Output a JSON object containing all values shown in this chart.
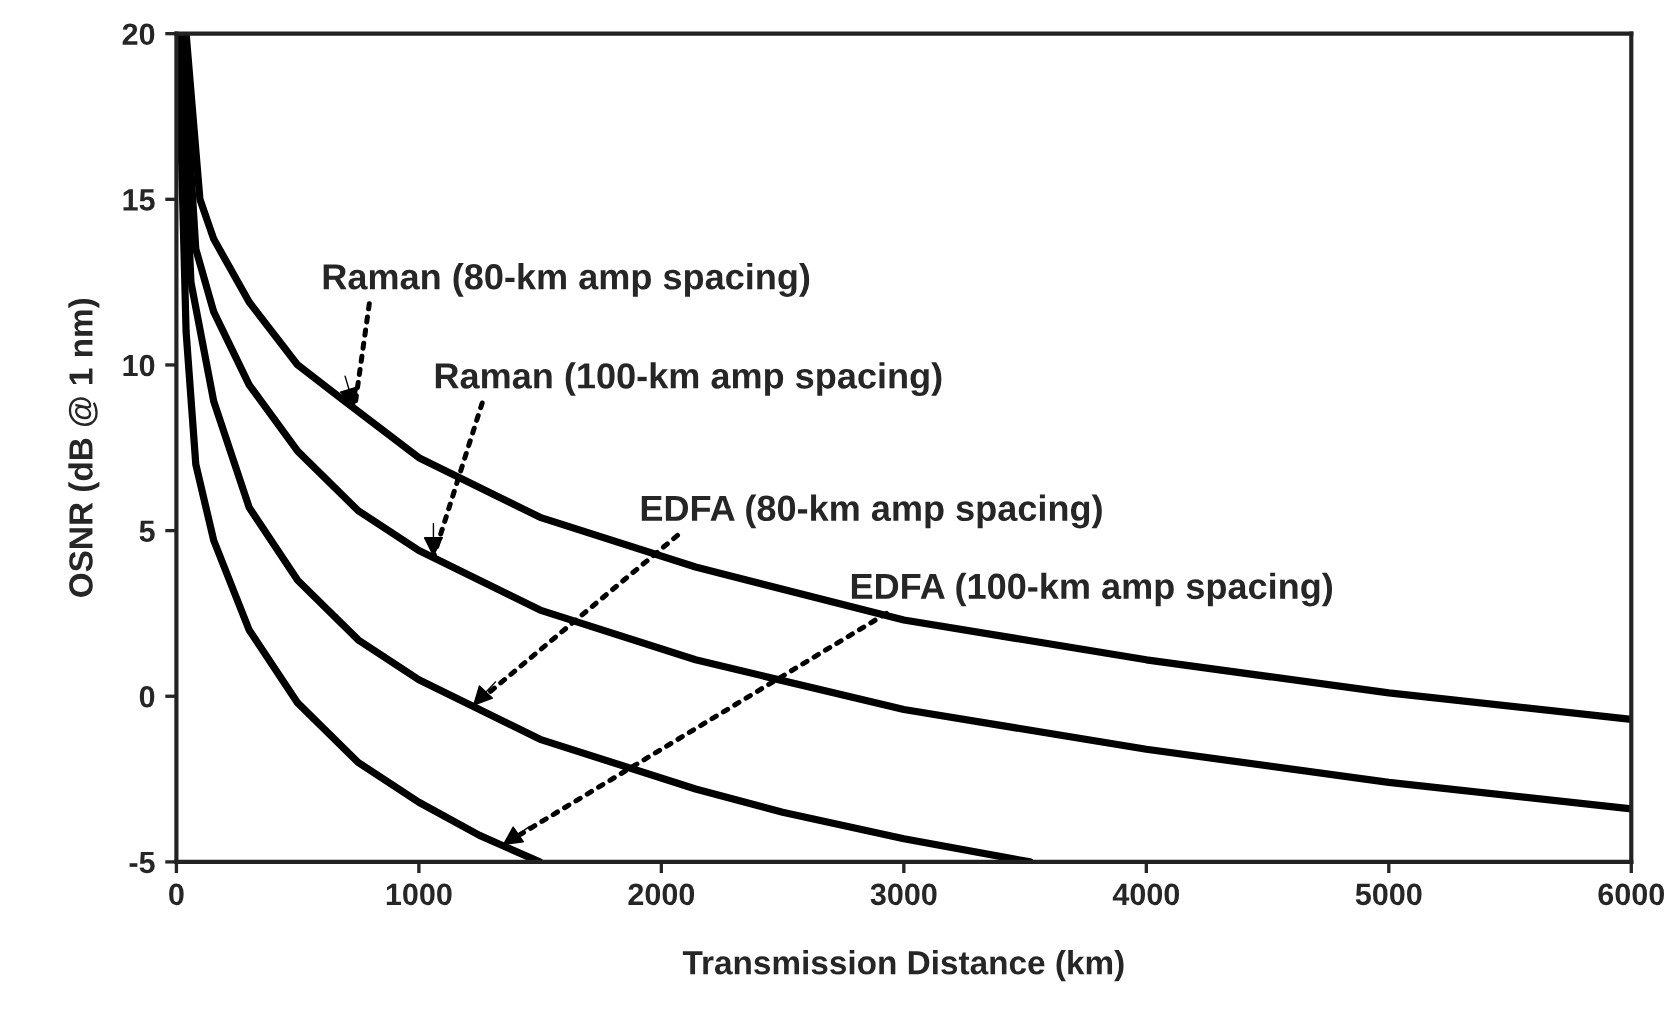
{
  "chart_data": {
    "type": "line",
    "xlabel": "Transmission Distance (km)",
    "ylabel": "OSNR (dB @ 1 nm)",
    "series": [
      {
        "color": "#000000",
        "x": [
          40,
          97,
          154,
          300,
          500,
          695,
          1000,
          1500,
          2141,
          3000,
          4000,
          5000,
          6000
        ],
        "values": [
          20,
          15,
          13.8,
          11.9,
          10.0,
          8.9,
          7.2,
          5.4,
          3.9,
          2.3,
          1.1,
          0.1,
          -0.7
        ]
      },
      {
        "color": "#000000",
        "x": [
          25,
          80,
          154,
          300,
          500,
          750,
          1000,
          1500,
          2141,
          3000,
          4000,
          5000,
          6000
        ],
        "values": [
          20,
          13.5,
          11.6,
          9.4,
          7.4,
          5.6,
          4.4,
          2.6,
          1.1,
          -0.4,
          -1.6,
          -2.6,
          -3.4
        ]
      },
      {
        "color": "#000000",
        "x": [
          15,
          60,
          154,
          300,
          500,
          750,
          1000,
          1500,
          2141,
          2500,
          3000,
          3520
        ],
        "values": [
          20,
          12.5,
          8.9,
          5.7,
          3.5,
          1.7,
          0.5,
          -1.3,
          -2.8,
          -3.5,
          -4.3,
          -5
        ]
      },
      {
        "color": "#000000",
        "x": [
          8,
          40,
          80,
          154,
          300,
          500,
          750,
          1000,
          1250,
          1498
        ],
        "values": [
          20,
          11,
          7,
          4.7,
          2.0,
          -0.2,
          -2.0,
          -3.2,
          -4.2,
          -5
        ]
      }
    ],
    "annotations": [
      {
        "text": "Raman (80-km amp spacing)",
        "x": 735,
        "y": 8.7
      },
      {
        "text": "Raman (100-km amp spacing)",
        "x": 1060,
        "y": 4.2
      },
      {
        "text": "EDFA (80-km amp spacing)",
        "x": 1222,
        "y": -0.3
      },
      {
        "text": "EDFA (100-km amp spacing)",
        "x": 1344,
        "y": -4.5
      }
    ],
    "xlim": [
      0,
      6000
    ],
    "xticks": [
      0,
      1000,
      2000,
      3000,
      4000,
      5000,
      6000
    ],
    "ylim": [
      -5,
      20
    ],
    "yticks": [
      -5,
      0,
      5,
      10,
      15,
      20
    ],
    "grid": false,
    "marker": "none",
    "line_style": "solid"
  }
}
